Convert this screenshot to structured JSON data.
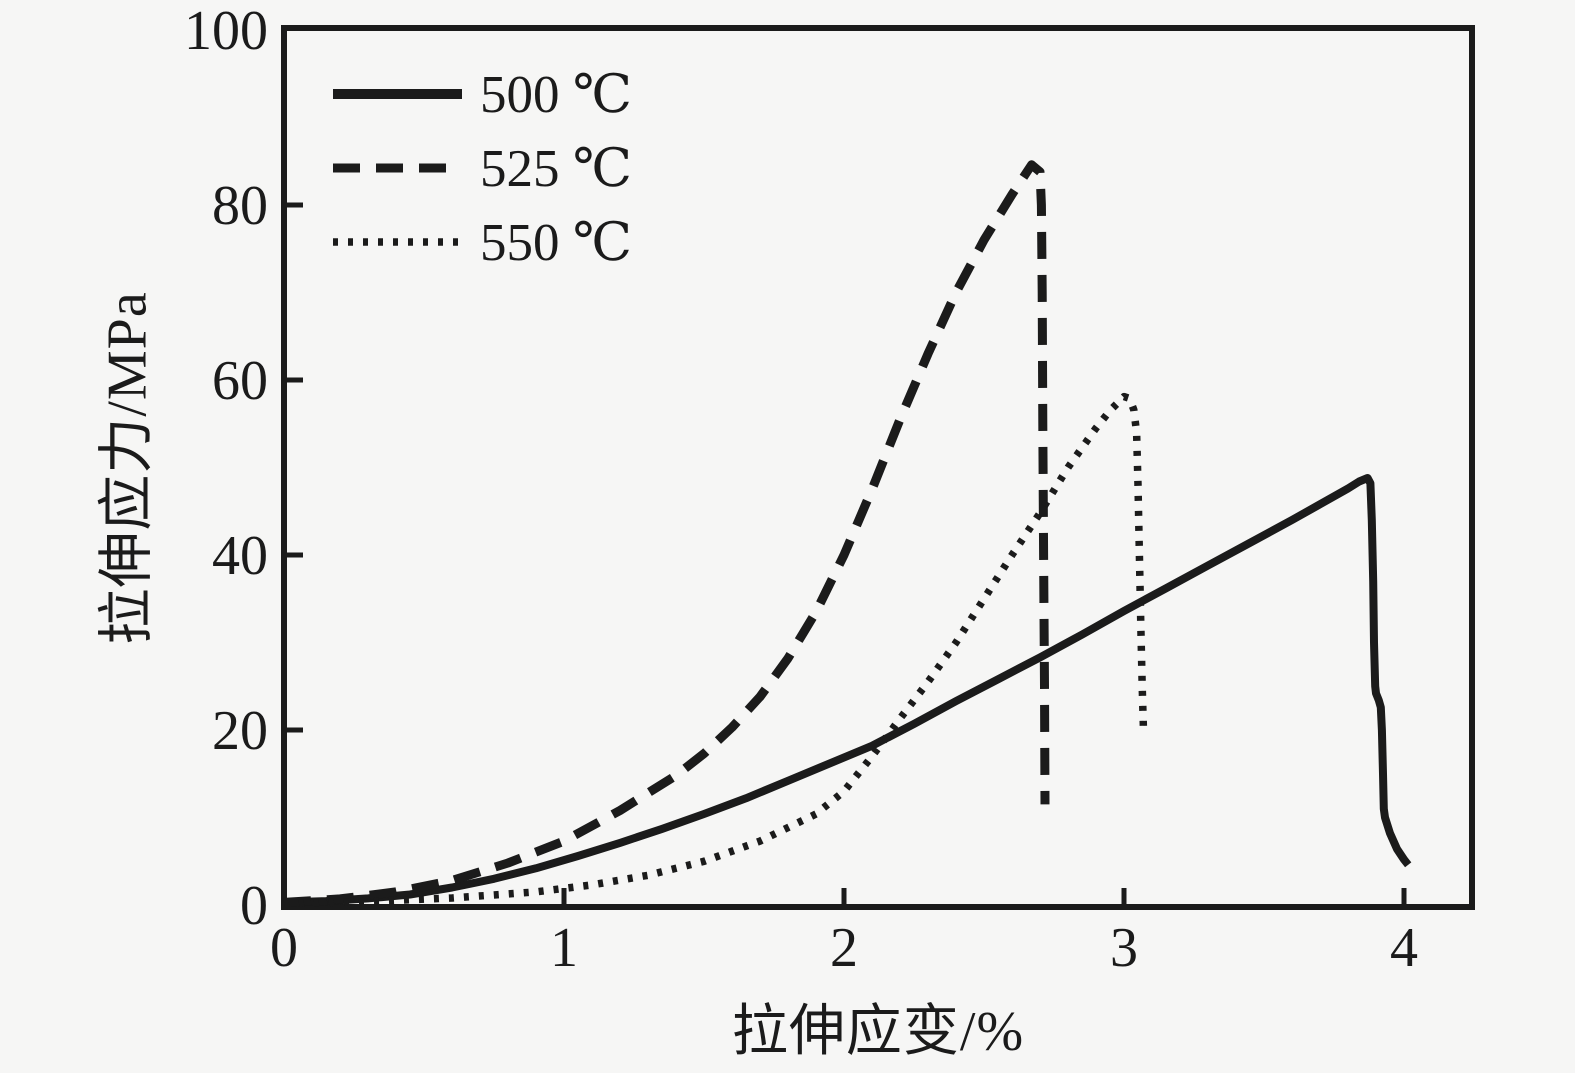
{
  "figure": {
    "background": "#f6f6f5",
    "ink": "#1b1b1b"
  },
  "chart_data": {
    "type": "line",
    "title": "",
    "xlabel": "拉伸应变/%",
    "ylabel": "拉伸应力/MPa",
    "xlim": [
      0,
      4.24
    ],
    "ylim": [
      0,
      100
    ],
    "xticks": [
      0,
      1,
      2,
      3,
      4
    ],
    "yticks": [
      0,
      20,
      40,
      60,
      80,
      100
    ],
    "grid": false,
    "legend_position": "top-left-inside",
    "series": [
      {
        "name": "500 ℃",
        "style": "solid",
        "peak_stress_mpa": 48.8,
        "peak_strain_pct": 3.87,
        "points": [
          [
            0,
            0.3
          ],
          [
            0.15,
            0.45
          ],
          [
            0.3,
            0.75
          ],
          [
            0.45,
            1.2
          ],
          [
            0.6,
            2.0
          ],
          [
            0.75,
            3.0
          ],
          [
            0.9,
            4.2
          ],
          [
            1.05,
            5.6
          ],
          [
            1.2,
            7.1
          ],
          [
            1.35,
            8.7
          ],
          [
            1.5,
            10.4
          ],
          [
            1.65,
            12.2
          ],
          [
            1.8,
            14.2
          ],
          [
            1.95,
            16.2
          ],
          [
            2.1,
            18.2
          ],
          [
            2.25,
            20.7
          ],
          [
            2.4,
            23.3
          ],
          [
            2.55,
            25.8
          ],
          [
            2.7,
            28.3
          ],
          [
            2.85,
            30.9
          ],
          [
            3.0,
            33.6
          ],
          [
            3.15,
            36.2
          ],
          [
            3.3,
            38.8
          ],
          [
            3.45,
            41.4
          ],
          [
            3.6,
            44.0
          ],
          [
            3.7,
            45.8
          ],
          [
            3.8,
            47.6
          ],
          [
            3.84,
            48.4
          ],
          [
            3.87,
            48.8
          ],
          [
            3.88,
            48.2
          ],
          [
            3.885,
            44.0
          ],
          [
            3.89,
            37.0
          ],
          [
            3.893,
            30.0
          ],
          [
            3.897,
            25.0
          ],
          [
            3.9,
            24.2
          ],
          [
            3.91,
            23.4
          ],
          [
            3.917,
            22.6
          ],
          [
            3.921,
            20.0
          ],
          [
            3.925,
            15.0
          ],
          [
            3.928,
            11.0
          ],
          [
            3.932,
            10.0
          ],
          [
            3.95,
            8.2
          ],
          [
            3.975,
            6.4
          ],
          [
            4.0,
            5.2
          ],
          [
            4.015,
            4.6
          ]
        ]
      },
      {
        "name": "525 ℃",
        "style": "dashed",
        "peak_stress_mpa": 84.6,
        "peak_strain_pct": 2.67,
        "points": [
          [
            0,
            0.3
          ],
          [
            0.2,
            0.7
          ],
          [
            0.4,
            1.5
          ],
          [
            0.6,
            2.8
          ],
          [
            0.8,
            4.8
          ],
          [
            1.0,
            7.3
          ],
          [
            1.2,
            10.8
          ],
          [
            1.4,
            14.8
          ],
          [
            1.5,
            17.3
          ],
          [
            1.6,
            20.3
          ],
          [
            1.7,
            23.8
          ],
          [
            1.8,
            28.2
          ],
          [
            1.9,
            33.5
          ],
          [
            2.0,
            40.0
          ],
          [
            2.1,
            47.5
          ],
          [
            2.2,
            55.5
          ],
          [
            2.3,
            63.0
          ],
          [
            2.4,
            70.0
          ],
          [
            2.5,
            76.0
          ],
          [
            2.6,
            81.2
          ],
          [
            2.67,
            84.6
          ],
          [
            2.7,
            83.8
          ],
          [
            2.705,
            80.0
          ],
          [
            2.708,
            70.0
          ],
          [
            2.71,
            55.0
          ],
          [
            2.713,
            40.0
          ],
          [
            2.716,
            25.0
          ],
          [
            2.718,
            11.5
          ]
        ]
      },
      {
        "name": "550 ℃",
        "style": "dotted",
        "peak_stress_mpa": 58.1,
        "peak_strain_pct": 3.0,
        "points": [
          [
            0,
            0.2
          ],
          [
            0.3,
            0.4
          ],
          [
            0.6,
            0.8
          ],
          [
            0.9,
            1.5
          ],
          [
            1.1,
            2.3
          ],
          [
            1.3,
            3.4
          ],
          [
            1.5,
            5.0
          ],
          [
            1.7,
            7.3
          ],
          [
            1.9,
            10.4
          ],
          [
            2.0,
            13.0
          ],
          [
            2.1,
            17.0
          ],
          [
            2.2,
            21.3
          ],
          [
            2.3,
            25.5
          ],
          [
            2.4,
            30.0
          ],
          [
            2.5,
            35.0
          ],
          [
            2.6,
            40.0
          ],
          [
            2.7,
            44.8
          ],
          [
            2.8,
            50.0
          ],
          [
            2.9,
            54.5
          ],
          [
            2.95,
            56.5
          ],
          [
            3.0,
            58.1
          ],
          [
            3.02,
            57.9
          ],
          [
            3.035,
            56.6
          ],
          [
            3.045,
            54.0
          ],
          [
            3.05,
            48.0
          ],
          [
            3.055,
            40.0
          ],
          [
            3.06,
            32.0
          ],
          [
            3.065,
            25.0
          ],
          [
            3.07,
            19.5
          ]
        ]
      }
    ]
  }
}
